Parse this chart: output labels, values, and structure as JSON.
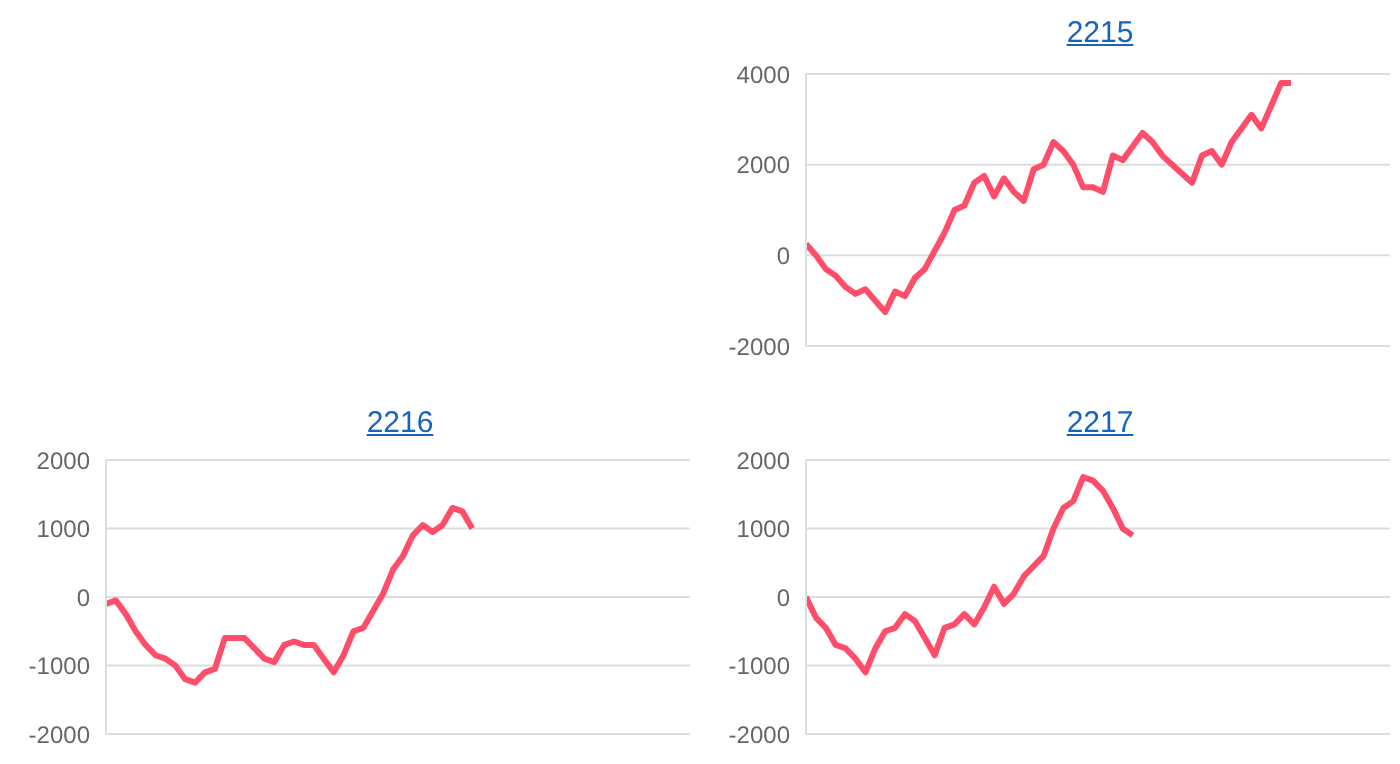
{
  "chart_data": [
    {
      "type": "line",
      "title": "2215",
      "categories": [
        null,
        null,
        null,
        null,
        null,
        null,
        null,
        null,
        null,
        null,
        null,
        null,
        null,
        null,
        null,
        null,
        null,
        null,
        null,
        null,
        null,
        null,
        null,
        null,
        null,
        null,
        null,
        null,
        null,
        null,
        null,
        null,
        null,
        null,
        null,
        null,
        null,
        null,
        null,
        null,
        null,
        null,
        null,
        null,
        null,
        null,
        null,
        null,
        null,
        null,
        null,
        null,
        null,
        null,
        null,
        null,
        null,
        null,
        null,
        null
      ],
      "series": [
        {
          "color": "#ff4d6a",
          "values": [
            250,
            0,
            -300,
            -450,
            -700,
            -850,
            -750,
            -1000,
            -1250,
            -800,
            -900,
            -500,
            -300,
            100,
            500,
            1000,
            1100,
            1600,
            1750,
            1300,
            1700,
            1400,
            1200,
            1900,
            2000,
            2500,
            2300,
            2000,
            1500,
            1500,
            1400,
            2200,
            2100,
            2400,
            2700,
            2500,
            2200,
            2000,
            1800,
            1600,
            2200,
            2300,
            2000,
            2500,
            2800,
            3100,
            2800,
            3300,
            3800,
            3800,
            null,
            null,
            null,
            null,
            null,
            null,
            null,
            null,
            null,
            null
          ]
        }
      ],
      "ylim": [
        -2000,
        4000
      ],
      "yticks": [
        -2000,
        0,
        2000,
        4000
      ],
      "grid": "y",
      "tick_labels": "y",
      "marker": "none",
      "line_style": "solid",
      "legend": false
    },
    {
      "type": "line",
      "title": "2216",
      "categories": [
        null,
        null,
        null,
        null,
        null,
        null,
        null,
        null,
        null,
        null,
        null,
        null,
        null,
        null,
        null,
        null,
        null,
        null,
        null,
        null,
        null,
        null,
        null,
        null,
        null,
        null,
        null,
        null,
        null,
        null,
        null,
        null,
        null,
        null,
        null,
        null,
        null,
        null,
        null,
        null,
        null,
        null,
        null,
        null,
        null,
        null,
        null,
        null,
        null,
        null,
        null,
        null,
        null,
        null,
        null,
        null,
        null,
        null,
        null,
        null
      ],
      "series": [
        {
          "color": "#ff4d6a",
          "values": [
            -100,
            -50,
            -250,
            -500,
            -700,
            -850,
            -900,
            -1000,
            -1200,
            -1250,
            -1100,
            -1050,
            -600,
            -600,
            -600,
            -750,
            -900,
            -950,
            -700,
            -650,
            -700,
            -700,
            -900,
            -1100,
            -850,
            -500,
            -450,
            -200,
            50,
            400,
            600,
            900,
            1050,
            950,
            1050,
            1300,
            1250,
            1000,
            null,
            null,
            null,
            null,
            null,
            null,
            null,
            null,
            null,
            null,
            null,
            null,
            null,
            null,
            null,
            null,
            null,
            null,
            null,
            null,
            null,
            null
          ]
        }
      ],
      "ylim": [
        -2000,
        2000
      ],
      "yticks": [
        -2000,
        -1000,
        0,
        1000,
        2000
      ],
      "grid": "y",
      "tick_labels": "y",
      "marker": "none",
      "line_style": "solid",
      "legend": false
    },
    {
      "type": "line",
      "title": "2217",
      "categories": [
        null,
        null,
        null,
        null,
        null,
        null,
        null,
        null,
        null,
        null,
        null,
        null,
        null,
        null,
        null,
        null,
        null,
        null,
        null,
        null,
        null,
        null,
        null,
        null,
        null,
        null,
        null,
        null,
        null,
        null,
        null,
        null,
        null,
        null,
        null,
        null,
        null,
        null,
        null,
        null,
        null,
        null,
        null,
        null,
        null,
        null,
        null,
        null,
        null,
        null,
        null,
        null,
        null,
        null,
        null,
        null,
        null,
        null,
        null,
        null
      ],
      "series": [
        {
          "color": "#ff4d6a",
          "values": [
            0,
            -300,
            -450,
            -700,
            -750,
            -900,
            -1100,
            -750,
            -500,
            -450,
            -250,
            -350,
            -600,
            -850,
            -450,
            -400,
            -250,
            -400,
            -150,
            150,
            -100,
            50,
            300,
            450,
            600,
            1000,
            1300,
            1400,
            1750,
            1700,
            1550,
            1300,
            1000,
            900,
            null,
            null,
            null,
            null,
            null,
            null,
            null,
            null,
            null,
            null,
            null,
            null,
            null,
            null,
            null,
            null,
            null,
            null,
            null,
            null,
            null,
            null,
            null,
            null,
            null,
            null
          ]
        }
      ],
      "ylim": [
        -2000,
        2000
      ],
      "yticks": [
        -2000,
        -1000,
        0,
        1000,
        2000
      ],
      "grid": "y",
      "tick_labels": "y",
      "marker": "none",
      "line_style": "solid",
      "legend": false
    }
  ]
}
